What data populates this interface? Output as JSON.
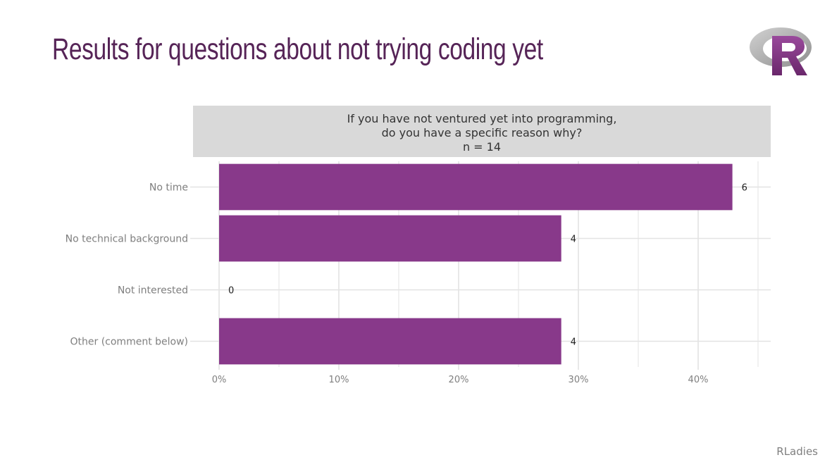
{
  "slide": {
    "title": "Results for questions about not trying coding yet",
    "footer": "RLadies",
    "logo_letter": "R",
    "colors": {
      "title": "#562457",
      "bar": "#88398a",
      "strip": "#d9d9d9",
      "grid": "#e3e3e3"
    }
  },
  "chart_data": {
    "type": "bar",
    "orientation": "horizontal",
    "title_lines": [
      "If you have not ventured yet into programming,",
      "do you have a specific reason why?",
      "n = 14"
    ],
    "categories": [
      "No time",
      "No technical background",
      "Not interested",
      "Other (comment below)"
    ],
    "counts": [
      6,
      4,
      0,
      4
    ],
    "percent_values": [
      42.86,
      28.57,
      0,
      28.57
    ],
    "xlim": [
      0,
      46
    ],
    "x_ticks": [
      0,
      10,
      20,
      30,
      40
    ],
    "x_tick_labels": [
      "0%",
      "10%",
      "20%",
      "30%",
      "40%"
    ],
    "grid": true
  }
}
